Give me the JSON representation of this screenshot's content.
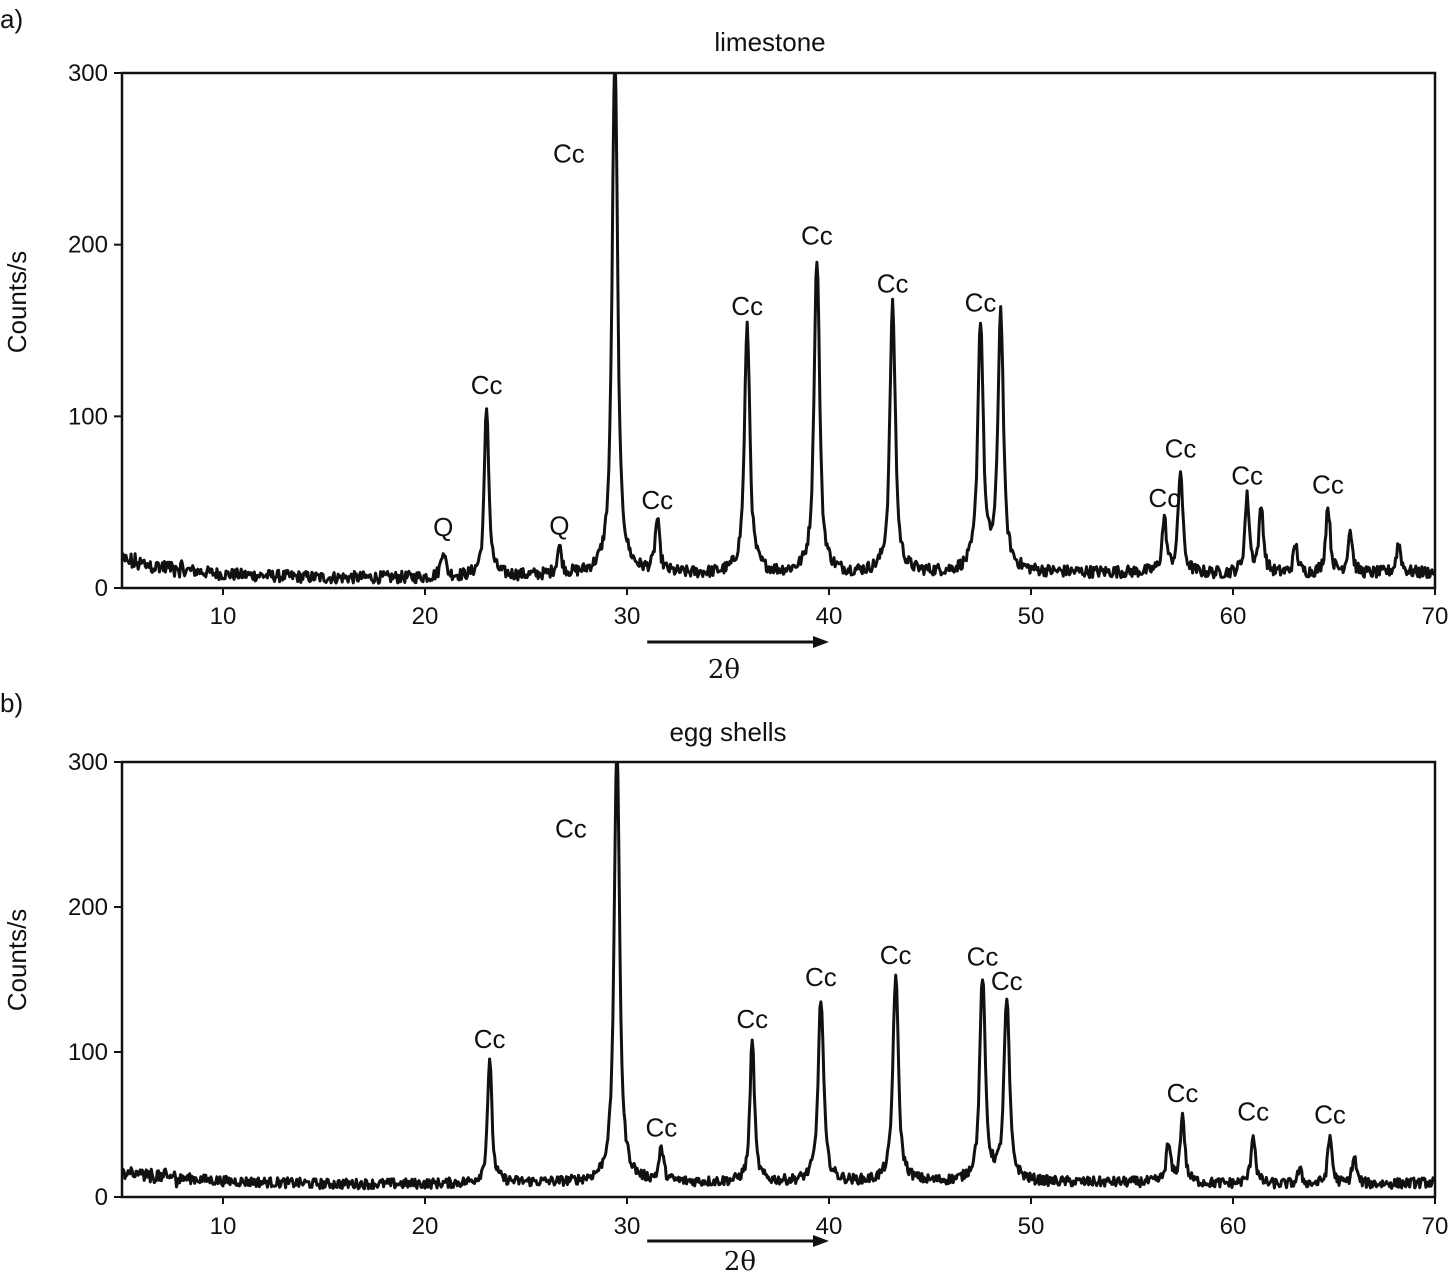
{
  "chart_data": [
    {
      "type": "line",
      "panel_label": "a)",
      "title": "limestone",
      "xlabel": "2θ",
      "ylabel": "Counts/s",
      "xlim": [
        5,
        70
      ],
      "ylim": [
        0,
        300
      ],
      "xticks": [
        10,
        20,
        30,
        40,
        50,
        60,
        70
      ],
      "yticks": [
        0,
        100,
        200,
        300
      ],
      "grid": false,
      "arrow_x_range": [
        31,
        40
      ],
      "baseline": [
        [
          5,
          16
        ],
        [
          7,
          12
        ],
        [
          10,
          8
        ],
        [
          15,
          6
        ],
        [
          20,
          6
        ],
        [
          25,
          7
        ],
        [
          30,
          8
        ],
        [
          40,
          8
        ],
        [
          50,
          9
        ],
        [
          55,
          9
        ],
        [
          60,
          8
        ],
        [
          65,
          8
        ],
        [
          70,
          9
        ]
      ],
      "peaks": [
        {
          "x": 20.9,
          "y": 22,
          "label": "Q"
        },
        {
          "x": 23.05,
          "y": 105,
          "label": "Cc"
        },
        {
          "x": 26.65,
          "y": 23,
          "label": "Q"
        },
        {
          "x": 29.4,
          "y": 310,
          "label": "Cc"
        },
        {
          "x": 31.5,
          "y": 38,
          "label": "Cc"
        },
        {
          "x": 35.95,
          "y": 151,
          "label": "Cc"
        },
        {
          "x": 39.4,
          "y": 192,
          "label": "Cc"
        },
        {
          "x": 43.15,
          "y": 164,
          "label": "Cc"
        },
        {
          "x": 47.5,
          "y": 153,
          "label": "Cc"
        },
        {
          "x": 48.5,
          "y": 159,
          "label": ""
        },
        {
          "x": 56.6,
          "y": 39,
          "label": "Cc"
        },
        {
          "x": 57.4,
          "y": 68,
          "label": "Cc"
        },
        {
          "x": 60.7,
          "y": 52,
          "label": "Cc"
        },
        {
          "x": 61.4,
          "y": 46,
          "label": ""
        },
        {
          "x": 63.1,
          "y": 24,
          "label": ""
        },
        {
          "x": 64.7,
          "y": 47,
          "label": "Cc"
        },
        {
          "x": 65.8,
          "y": 33,
          "label": ""
        },
        {
          "x": 68.2,
          "y": 26,
          "label": ""
        }
      ]
    },
    {
      "type": "line",
      "panel_label": "b)",
      "title": "egg shells",
      "xlabel": "2θ",
      "ylabel": "Counts/s",
      "xlim": [
        5,
        70
      ],
      "ylim": [
        0,
        300
      ],
      "xticks": [
        10,
        20,
        30,
        40,
        50,
        60,
        70
      ],
      "yticks": [
        0,
        100,
        200,
        300
      ],
      "grid": false,
      "arrow_x_range": [
        31,
        40
      ],
      "baseline": [
        [
          5,
          16
        ],
        [
          8,
          13
        ],
        [
          10,
          11
        ],
        [
          15,
          9
        ],
        [
          20,
          9
        ],
        [
          25,
          10
        ],
        [
          30,
          10
        ],
        [
          40,
          10
        ],
        [
          50,
          10
        ],
        [
          55,
          10
        ],
        [
          60,
          9
        ],
        [
          65,
          8
        ],
        [
          70,
          10
        ]
      ],
      "peaks": [
        {
          "x": 23.2,
          "y": 93,
          "label": "Cc"
        },
        {
          "x": 29.5,
          "y": 310,
          "label": "Cc"
        },
        {
          "x": 31.7,
          "y": 32,
          "label": "Cc"
        },
        {
          "x": 36.2,
          "y": 107,
          "label": "Cc"
        },
        {
          "x": 39.6,
          "y": 136,
          "label": "Cc"
        },
        {
          "x": 43.3,
          "y": 151,
          "label": "Cc"
        },
        {
          "x": 47.6,
          "y": 150,
          "label": "Cc"
        },
        {
          "x": 48.8,
          "y": 133,
          "label": "Cc"
        },
        {
          "x": 56.8,
          "y": 35,
          "label": ""
        },
        {
          "x": 57.5,
          "y": 56,
          "label": "Cc"
        },
        {
          "x": 61.0,
          "y": 43,
          "label": "Cc"
        },
        {
          "x": 63.3,
          "y": 18,
          "label": ""
        },
        {
          "x": 64.8,
          "y": 41,
          "label": "Cc"
        },
        {
          "x": 66.0,
          "y": 27,
          "label": ""
        }
      ]
    }
  ]
}
